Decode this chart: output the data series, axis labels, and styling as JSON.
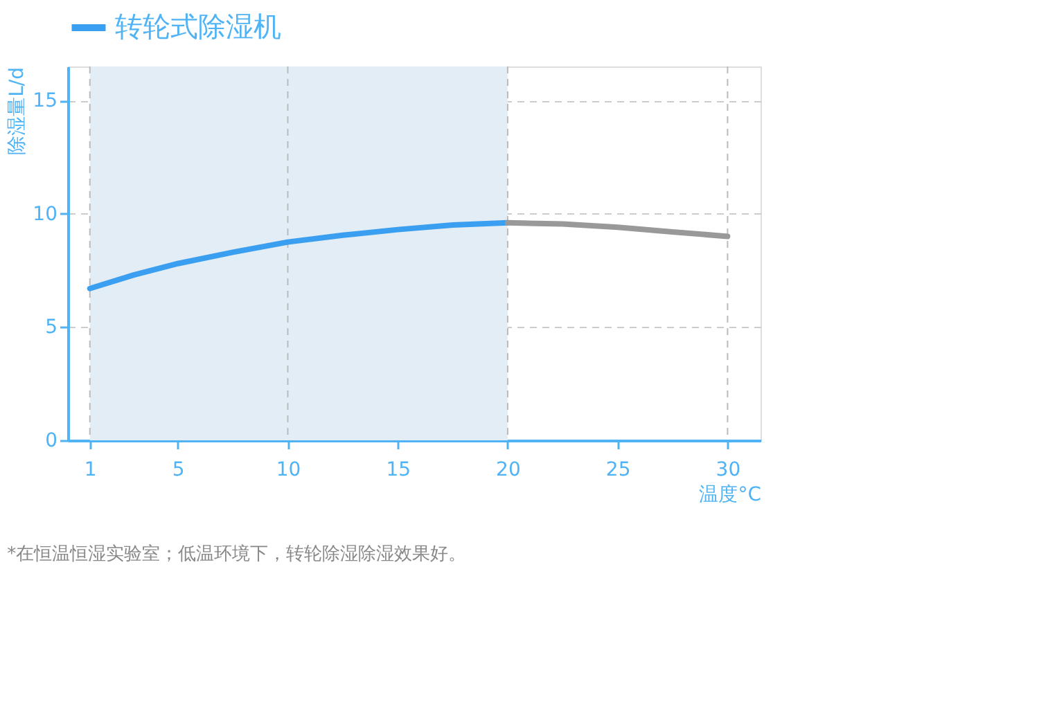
{
  "chart_data": {
    "type": "line",
    "xlabel": "温度°C",
    "ylabel": "除湿量L/d",
    "x": [
      1,
      3,
      5,
      7.5,
      10,
      12.5,
      15,
      17.5,
      20
    ],
    "series": [
      {
        "name": "转轮式除湿机",
        "color": "#3a9ff0",
        "values": [
          6.7,
          7.3,
          7.8,
          8.3,
          8.75,
          9.05,
          9.3,
          9.5,
          9.6
        ]
      },
      {
        "color": "#999999",
        "x": [
          20,
          22.5,
          25,
          27.5,
          30
        ],
        "values": [
          9.6,
          9.55,
          9.4,
          9.2,
          9.0
        ]
      }
    ],
    "xlim": [
      0,
      31.5
    ],
    "ylim": [
      0,
      16.5
    ],
    "xticks": [
      1,
      5,
      10,
      15,
      20,
      25,
      30
    ],
    "yticks": [
      0,
      5,
      10,
      15
    ],
    "grid": "y",
    "legend": "top",
    "line_style": "solid",
    "marker": "none",
    "bands": [
      {
        "axis": "x",
        "from": 1,
        "to": 20,
        "color": "#e3edf5"
      }
    ],
    "ref_lines": [
      {
        "axis": "x",
        "value": 1,
        "color": "#bbbbbb",
        "line_style": "dashed"
      },
      {
        "axis": "x",
        "value": 10,
        "color": "#bbbbbb",
        "line_style": "dashed"
      },
      {
        "axis": "x",
        "value": 20,
        "color": "#bbbbbb",
        "line_style": "dashed"
      },
      {
        "axis": "x",
        "value": 30,
        "color": "#bbbbbb",
        "line_style": "dashed"
      }
    ],
    "annotations": [
      "*在恒温恒湿实验室；低温环境下，转轮除湿除湿效果好。"
    ]
  }
}
